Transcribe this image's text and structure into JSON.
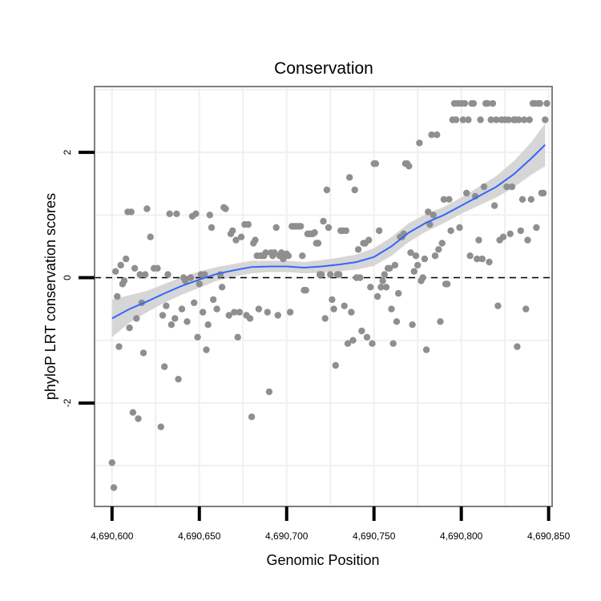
{
  "chart_data": {
    "type": "scatter",
    "title": "Conservation",
    "xlabel": "Genomic Position",
    "ylabel": "phyloP LRT conservation scores",
    "xlim": [
      4690590,
      4690852
    ],
    "ylim": [
      -3.65,
      3.05
    ],
    "grid": true,
    "x_ticks": [
      4690600,
      4690650,
      4690700,
      4690750,
      4690800,
      4690850
    ],
    "x_tick_labels": [
      "4,690,600",
      "4,690,650",
      "4,690,700",
      "4,690,750",
      "4,690,800",
      "4,690,850"
    ],
    "y_ticks": [
      -2,
      0,
      2
    ],
    "y_tick_labels": [
      "-2",
      "0",
      "2"
    ],
    "reference_line": {
      "y": 0,
      "style": "dashed"
    },
    "colors": {
      "points": "#8f8f8f",
      "smooth_line": "#3366ff",
      "confidence_band": "#d4d4d4",
      "panel_border": "#7f7f7f",
      "grid": "#f0f0f0"
    },
    "series": [
      {
        "name": "phyloP scores",
        "kind": "points",
        "points": [
          [
            4690600,
            -2.95
          ],
          [
            4690601,
            -3.35
          ],
          [
            4690602,
            0.1
          ],
          [
            4690603,
            -0.3
          ],
          [
            4690604,
            -1.1
          ],
          [
            4690605,
            0.2
          ],
          [
            4690606,
            -0.1
          ],
          [
            4690607,
            -0.05
          ],
          [
            4690608,
            0.3
          ],
          [
            4690609,
            1.05
          ],
          [
            4690610,
            -0.8
          ],
          [
            4690611,
            1.05
          ],
          [
            4690612,
            -2.15
          ],
          [
            4690613,
            0.15
          ],
          [
            4690614,
            -0.65
          ],
          [
            4690615,
            -2.25
          ],
          [
            4690616,
            0.05
          ],
          [
            4690617,
            -0.4
          ],
          [
            4690618,
            -1.2
          ],
          [
            4690619,
            0.05
          ],
          [
            4690620,
            1.1
          ],
          [
            4690622,
            0.65
          ],
          [
            4690624,
            0.15
          ],
          [
            4690626,
            0.15
          ],
          [
            4690628,
            -2.38
          ],
          [
            4690629,
            -0.6
          ],
          [
            4690630,
            -1.42
          ],
          [
            4690631,
            -0.45
          ],
          [
            4690632,
            0.05
          ],
          [
            4690633,
            1.02
          ],
          [
            4690634,
            -0.75
          ],
          [
            4690636,
            -0.65
          ],
          [
            4690637,
            1.02
          ],
          [
            4690638,
            -1.62
          ],
          [
            4690640,
            -0.5
          ],
          [
            4690641,
            0.0
          ],
          [
            4690642,
            -0.05
          ],
          [
            4690643,
            -0.7
          ],
          [
            4690645,
            0.0
          ],
          [
            4690646,
            0.98
          ],
          [
            4690647,
            -0.4
          ],
          [
            4690648,
            1.02
          ],
          [
            4690649,
            -0.95
          ],
          [
            4690650,
            -0.1
          ],
          [
            4690651,
            0.05
          ],
          [
            4690652,
            -0.55
          ],
          [
            4690653,
            0.05
          ],
          [
            4690654,
            -1.15
          ],
          [
            4690655,
            -0.75
          ],
          [
            4690656,
            1.0
          ],
          [
            4690657,
            0.8
          ],
          [
            4690658,
            -0.35
          ],
          [
            4690660,
            -0.5
          ],
          [
            4690662,
            0.05
          ],
          [
            4690663,
            -0.15
          ],
          [
            4690664,
            1.12
          ],
          [
            4690665,
            1.1
          ],
          [
            4690667,
            -0.6
          ],
          [
            4690668,
            0.7
          ],
          [
            4690669,
            0.75
          ],
          [
            4690670,
            -0.55
          ],
          [
            4690671,
            0.6
          ],
          [
            4690672,
            -0.95
          ],
          [
            4690673,
            -0.55
          ],
          [
            4690674,
            0.65
          ],
          [
            4690676,
            0.85
          ],
          [
            4690677,
            -0.6
          ],
          [
            4690678,
            0.85
          ],
          [
            4690679,
            -0.65
          ],
          [
            4690680,
            -2.22
          ],
          [
            4690681,
            0.55
          ],
          [
            4690682,
            0.6
          ],
          [
            4690683,
            0.35
          ],
          [
            4690684,
            -0.5
          ],
          [
            4690685,
            0.35
          ],
          [
            4690686,
            0.35
          ],
          [
            4690687,
            0.35
          ],
          [
            4690688,
            0.4
          ],
          [
            4690689,
            -0.55
          ],
          [
            4690690,
            -1.82
          ],
          [
            4690691,
            0.4
          ],
          [
            4690692,
            0.35
          ],
          [
            4690693,
            0.4
          ],
          [
            4690694,
            0.8
          ],
          [
            4690695,
            -0.6
          ],
          [
            4690696,
            0.35
          ],
          [
            4690697,
            0.4
          ],
          [
            4690698,
            0.3
          ],
          [
            4690699,
            0.35
          ],
          [
            4690700,
            0.38
          ],
          [
            4690701,
            0.35
          ],
          [
            4690702,
            -0.55
          ],
          [
            4690703,
            0.82
          ],
          [
            4690704,
            0.82
          ],
          [
            4690705,
            0.82
          ],
          [
            4690706,
            0.82
          ],
          [
            4690707,
            0.82
          ],
          [
            4690708,
            0.82
          ],
          [
            4690709,
            0.35
          ],
          [
            4690710,
            -0.2
          ],
          [
            4690711,
            -0.2
          ],
          [
            4690712,
            0.7
          ],
          [
            4690713,
            0.7
          ],
          [
            4690714,
            0.7
          ],
          [
            4690715,
            0.7
          ],
          [
            4690716,
            0.72
          ],
          [
            4690717,
            0.55
          ],
          [
            4690718,
            0.55
          ],
          [
            4690719,
            0.05
          ],
          [
            4690720,
            0.05
          ],
          [
            4690721,
            0.9
          ],
          [
            4690722,
            -0.65
          ],
          [
            4690723,
            1.4
          ],
          [
            4690724,
            0.8
          ],
          [
            4690725,
            0.05
          ],
          [
            4690726,
            -0.35
          ],
          [
            4690727,
            -0.5
          ],
          [
            4690728,
            -1.4
          ],
          [
            4690729,
            0.05
          ],
          [
            4690730,
            0.05
          ],
          [
            4690731,
            0.75
          ],
          [
            4690732,
            0.75
          ],
          [
            4690733,
            -0.45
          ],
          [
            4690734,
            0.75
          ],
          [
            4690735,
            -1.05
          ],
          [
            4690736,
            1.6
          ],
          [
            4690737,
            -0.55
          ],
          [
            4690738,
            -1.0
          ],
          [
            4690739,
            1.4
          ],
          [
            4690740,
            0.0
          ],
          [
            4690741,
            0.45
          ],
          [
            4690742,
            0.0
          ],
          [
            4690743,
            -0.85
          ],
          [
            4690744,
            0.55
          ],
          [
            4690745,
            0.55
          ],
          [
            4690746,
            -0.95
          ],
          [
            4690747,
            0.6
          ],
          [
            4690748,
            -0.15
          ],
          [
            4690749,
            -1.05
          ],
          [
            4690750,
            1.82
          ],
          [
            4690751,
            1.82
          ],
          [
            4690752,
            -0.3
          ],
          [
            4690753,
            0.75
          ],
          [
            4690754,
            -0.15
          ],
          [
            4690755,
            -0.05
          ],
          [
            4690756,
            0.05
          ],
          [
            4690757,
            -0.15
          ],
          [
            4690758,
            0.15
          ],
          [
            4690759,
            0.15
          ],
          [
            4690760,
            -0.5
          ],
          [
            4690761,
            -1.05
          ],
          [
            4690762,
            0.2
          ],
          [
            4690763,
            -0.7
          ],
          [
            4690764,
            -0.25
          ],
          [
            4690765,
            0.65
          ],
          [
            4690766,
            0.65
          ],
          [
            4690767,
            0.7
          ],
          [
            4690768,
            1.82
          ],
          [
            4690769,
            1.82
          ],
          [
            4690770,
            1.78
          ],
          [
            4690771,
            0.4
          ],
          [
            4690772,
            -0.75
          ],
          [
            4690773,
            0.1
          ],
          [
            4690774,
            0.35
          ],
          [
            4690775,
            0.2
          ],
          [
            4690776,
            2.15
          ],
          [
            4690777,
            -0.05
          ],
          [
            4690778,
            0.0
          ],
          [
            4690779,
            0.3
          ],
          [
            4690780,
            -1.15
          ],
          [
            4690781,
            1.05
          ],
          [
            4690782,
            0.85
          ],
          [
            4690783,
            2.28
          ],
          [
            4690784,
            1.0
          ],
          [
            4690785,
            0.35
          ],
          [
            4690786,
            2.28
          ],
          [
            4690787,
            0.45
          ],
          [
            4690788,
            -0.7
          ],
          [
            4690789,
            0.55
          ],
          [
            4690790,
            1.25
          ],
          [
            4690791,
            -0.1
          ],
          [
            4690792,
            -0.1
          ],
          [
            4690793,
            1.25
          ],
          [
            4690794,
            0.75
          ],
          [
            4690795,
            2.52
          ],
          [
            4690796,
            2.78
          ],
          [
            4690797,
            2.52
          ],
          [
            4690798,
            2.78
          ],
          [
            4690799,
            0.8
          ],
          [
            4690800,
            2.78
          ],
          [
            4690801,
            2.52
          ],
          [
            4690802,
            2.78
          ],
          [
            4690803,
            1.35
          ],
          [
            4690804,
            2.52
          ],
          [
            4690805,
            0.35
          ],
          [
            4690806,
            2.78
          ],
          [
            4690807,
            2.78
          ],
          [
            4690808,
            1.3
          ],
          [
            4690809,
            0.3
          ],
          [
            4690810,
            0.6
          ],
          [
            4690811,
            2.52
          ],
          [
            4690812,
            0.3
          ],
          [
            4690813,
            1.45
          ],
          [
            4690814,
            2.78
          ],
          [
            4690815,
            2.78
          ],
          [
            4690816,
            0.25
          ],
          [
            4690817,
            2.52
          ],
          [
            4690818,
            2.78
          ],
          [
            4690819,
            1.15
          ],
          [
            4690820,
            2.52
          ],
          [
            4690821,
            -0.45
          ],
          [
            4690822,
            0.6
          ],
          [
            4690823,
            2.52
          ],
          [
            4690824,
            0.65
          ],
          [
            4690825,
            2.52
          ],
          [
            4690826,
            1.45
          ],
          [
            4690827,
            2.52
          ],
          [
            4690828,
            0.7
          ],
          [
            4690829,
            1.45
          ],
          [
            4690830,
            2.52
          ],
          [
            4690831,
            2.52
          ],
          [
            4690832,
            -1.1
          ],
          [
            4690833,
            2.52
          ],
          [
            4690834,
            0.75
          ],
          [
            4690835,
            1.25
          ],
          [
            4690836,
            2.52
          ],
          [
            4690837,
            -0.5
          ],
          [
            4690838,
            0.6
          ],
          [
            4690839,
            2.52
          ],
          [
            4690840,
            1.25
          ],
          [
            4690841,
            2.78
          ],
          [
            4690842,
            2.78
          ],
          [
            4690843,
            0.8
          ],
          [
            4690844,
            2.78
          ],
          [
            4690845,
            2.78
          ],
          [
            4690846,
            1.35
          ],
          [
            4690847,
            1.35
          ],
          [
            4690848,
            2.52
          ],
          [
            4690849,
            2.78
          ]
        ]
      },
      {
        "name": "smoothed fit",
        "kind": "line",
        "x": [
          4690600,
          4690610,
          4690620,
          4690630,
          4690640,
          4690650,
          4690660,
          4690670,
          4690680,
          4690690,
          4690700,
          4690710,
          4690720,
          4690730,
          4690740,
          4690750,
          4690760,
          4690770,
          4690780,
          4690790,
          4690800,
          4690810,
          4690820,
          4690830,
          4690840,
          4690848
        ],
        "y": [
          -0.65,
          -0.5,
          -0.38,
          -0.25,
          -0.13,
          -0.03,
          0.06,
          0.12,
          0.17,
          0.18,
          0.18,
          0.16,
          0.18,
          0.21,
          0.25,
          0.33,
          0.5,
          0.72,
          0.88,
          1.0,
          1.15,
          1.3,
          1.45,
          1.65,
          1.9,
          2.12
        ],
        "ci_lower": [
          -0.95,
          -0.72,
          -0.55,
          -0.4,
          -0.27,
          -0.16,
          -0.05,
          0.02,
          0.07,
          0.09,
          0.09,
          0.07,
          0.08,
          0.1,
          0.13,
          0.19,
          0.35,
          0.57,
          0.74,
          0.87,
          1.02,
          1.15,
          1.28,
          1.44,
          1.64,
          1.78
        ],
        "ci_upper": [
          -0.35,
          -0.28,
          -0.21,
          -0.1,
          0.01,
          0.1,
          0.17,
          0.22,
          0.27,
          0.27,
          0.27,
          0.25,
          0.28,
          0.32,
          0.37,
          0.47,
          0.65,
          0.87,
          1.02,
          1.13,
          1.28,
          1.45,
          1.62,
          1.86,
          2.16,
          2.46
        ]
      }
    ]
  }
}
